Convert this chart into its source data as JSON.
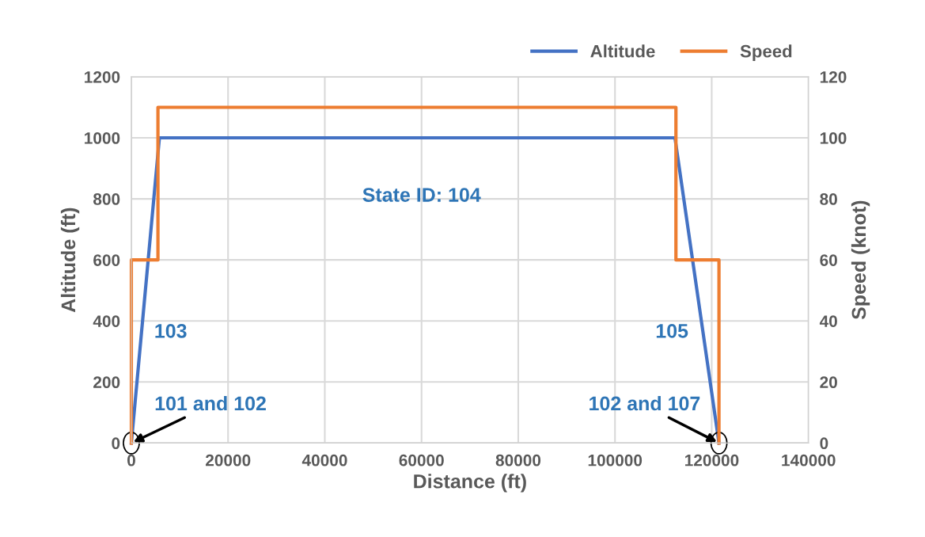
{
  "chart_data": {
    "type": "line",
    "xlabel": "Distance (ft)",
    "ylabel": "Altitude (ft)",
    "y2label": "Speed (knot)",
    "series": [
      {
        "name": "Altitude",
        "color": "#4472c4",
        "x": [
          0,
          5800,
          112400,
          121500
        ],
        "values": [
          0,
          1000,
          1000,
          0
        ]
      },
      {
        "name": "Speed",
        "color": "#ed7d31",
        "axis": "y2",
        "x": [
          0,
          0,
          5500,
          5500,
          112600,
          112600,
          121500,
          121500
        ],
        "values": [
          0,
          60,
          60,
          110,
          110,
          60,
          60,
          0
        ]
      }
    ],
    "xlim": [
      0,
      140000
    ],
    "xticks": [
      0,
      20000,
      40000,
      60000,
      80000,
      100000,
      120000,
      140000
    ],
    "ylim": [
      0,
      1200
    ],
    "yticks": [
      0,
      200,
      400,
      600,
      800,
      1000,
      1200
    ],
    "y2lim": [
      0,
      120
    ],
    "y2ticks": [
      0,
      20,
      40,
      60,
      80,
      100,
      120
    ],
    "annotations": [
      {
        "text": "State ID: 104",
        "x": 60000,
        "y": 1000
      },
      {
        "text": "103",
        "x": 2900,
        "y": 500
      },
      {
        "text": "105",
        "x": 117000,
        "y": 500
      },
      {
        "text": "101 and 102",
        "x": 0,
        "y": 0
      },
      {
        "text": "102 and 107",
        "x": 121500,
        "y": 0
      }
    ],
    "grid": true,
    "legend": "top right",
    "line_style": "solid"
  }
}
